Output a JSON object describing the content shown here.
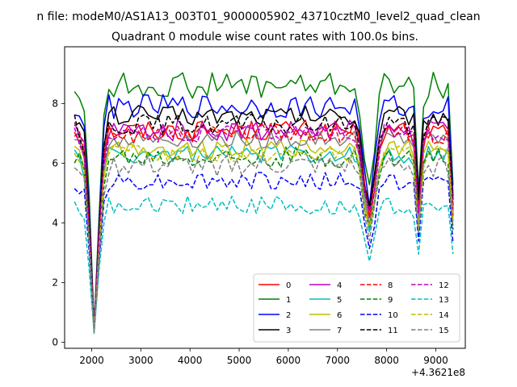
{
  "chart_data": {
    "type": "line",
    "suptitle": "n file: modeM0/AS1A13_003T01_9000005902_43710cztM0_level2_quad_clean",
    "title": "Quadrant 0 module wise count rates with 100.0s bins.",
    "xlabel": "",
    "ylabel": "",
    "x_offset_label": "+4.3621e8",
    "xlim": [
      1450,
      9600
    ],
    "ylim": [
      -0.2,
      9.9
    ],
    "x_ticks": [
      2000,
      3000,
      4000,
      5000,
      6000,
      7000,
      8000,
      9000
    ],
    "y_ticks": [
      0,
      2,
      4,
      6,
      8
    ],
    "grid": false,
    "legend_position": "lower-right",
    "legend_columns": 4,
    "x": [
      1650,
      1750,
      1850,
      1950,
      2050,
      2150,
      2250,
      2350,
      2450,
      2550,
      2650,
      2750,
      2850,
      2950,
      3050,
      3150,
      3250,
      3350,
      3450,
      3550,
      3650,
      3750,
      3850,
      3950,
      4050,
      4150,
      4250,
      4350,
      4450,
      4550,
      4650,
      4750,
      4850,
      4950,
      5050,
      5150,
      5250,
      5350,
      5450,
      5550,
      5650,
      5750,
      5850,
      5950,
      6050,
      6150,
      6250,
      6350,
      6450,
      6550,
      6650,
      6750,
      6850,
      6950,
      7050,
      7150,
      7250,
      7350,
      7450,
      7550,
      7650,
      7750,
      7850,
      7950,
      8050,
      8150,
      8250,
      8350,
      8450,
      8550,
      8650,
      8750,
      8850,
      8950,
      9050,
      9150,
      9250,
      9350
    ],
    "dip_profile": {
      "points": [
        [
          1650,
          1.0
        ],
        [
          1750,
          0.97
        ],
        [
          1850,
          0.91
        ],
        [
          1950,
          0.55
        ],
        [
          2050,
          0.06
        ],
        [
          2150,
          0.5
        ],
        [
          2250,
          0.88
        ],
        [
          2350,
          1.0
        ],
        [
          7350,
          1.0
        ],
        [
          7450,
          0.92
        ],
        [
          7550,
          0.72
        ],
        [
          7650,
          0.6
        ],
        [
          7750,
          0.74
        ],
        [
          7850,
          0.93
        ],
        [
          7950,
          1.0
        ],
        [
          8450,
          1.0
        ],
        [
          8550,
          0.97
        ],
        [
          8650,
          0.62
        ],
        [
          8750,
          0.96
        ],
        [
          8850,
          1.0
        ],
        [
          9250,
          1.0
        ],
        [
          9350,
          0.63
        ]
      ]
    },
    "series": [
      {
        "name": "0",
        "color": "#ff0000",
        "dash": "solid",
        "level": 7.1,
        "noise": 0.35
      },
      {
        "name": "1",
        "color": "#008000",
        "dash": "solid",
        "level": 8.6,
        "noise": 0.45
      },
      {
        "name": "2",
        "color": "#0000ff",
        "dash": "solid",
        "level": 7.9,
        "noise": 0.4
      },
      {
        "name": "3",
        "color": "#000000",
        "dash": "solid",
        "level": 7.6,
        "noise": 0.35
      },
      {
        "name": "4",
        "color": "#bf00bf",
        "dash": "solid",
        "level": 7.1,
        "noise": 0.35
      },
      {
        "name": "5",
        "color": "#00bfbf",
        "dash": "solid",
        "level": 6.3,
        "noise": 0.3
      },
      {
        "name": "6",
        "color": "#bfbf00",
        "dash": "solid",
        "level": 6.5,
        "noise": 0.3
      },
      {
        "name": "7",
        "color": "#808080",
        "dash": "solid",
        "level": 6.8,
        "noise": 0.3
      },
      {
        "name": "8",
        "color": "#ff0000",
        "dash": "dashed",
        "level": 7.0,
        "noise": 0.35
      },
      {
        "name": "9",
        "color": "#008000",
        "dash": "dashed",
        "level": 6.2,
        "noise": 0.35
      },
      {
        "name": "10",
        "color": "#0000ff",
        "dash": "dashed",
        "level": 5.4,
        "noise": 0.3
      },
      {
        "name": "11",
        "color": "#000000",
        "dash": "dashed",
        "level": 7.3,
        "noise": 0.35
      },
      {
        "name": "12",
        "color": "#bf00bf",
        "dash": "dashed",
        "level": 7.0,
        "noise": 0.3
      },
      {
        "name": "13",
        "color": "#00bfbf",
        "dash": "dashed",
        "level": 4.6,
        "noise": 0.3
      },
      {
        "name": "14",
        "color": "#bfbf00",
        "dash": "dashed",
        "level": 6.3,
        "noise": 0.3
      },
      {
        "name": "15",
        "color": "#808080",
        "dash": "dashed",
        "level": 5.9,
        "noise": 0.35
      }
    ]
  }
}
